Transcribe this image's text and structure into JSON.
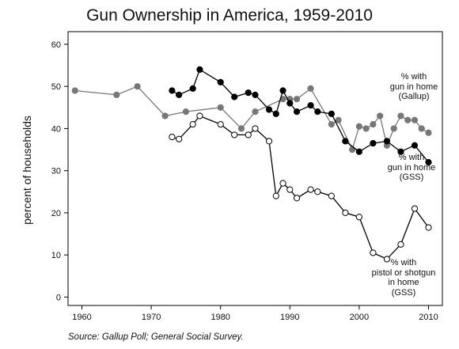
{
  "chart_data": {
    "type": "line",
    "title": "Gun Ownership in America, 1959-2010",
    "ylabel": "percent of households",
    "xlabel": "",
    "source": "Source: Gallup Poll; General Social Survey.",
    "xlim": [
      1958,
      2012
    ],
    "ylim": [
      -2,
      63
    ],
    "xticks": [
      1960,
      1970,
      1980,
      1990,
      2000,
      2010
    ],
    "yticks": [
      0,
      10,
      20,
      30,
      40,
      50,
      60
    ],
    "grid": false,
    "series": [
      {
        "name": "% with gun in home (Gallup)",
        "label_lines": [
          "% with",
          "gun in home",
          "(Gallup)"
        ],
        "color": "#777777",
        "marker_fill": "#777777",
        "x": [
          1959,
          1965,
          1968,
          1972,
          1975,
          1980,
          1983,
          1985,
          1989,
          1990,
          1991,
          1993,
          1996,
          1997,
          1999,
          2000,
          2001,
          2002,
          2003,
          2004,
          2005,
          2006,
          2007,
          2008,
          2009,
          2010
        ],
        "y": [
          49,
          48,
          50,
          43,
          44,
          45,
          40,
          44,
          47,
          47,
          47,
          49.5,
          41,
          42,
          35,
          40.5,
          40,
          41,
          43,
          36,
          40,
          43,
          42,
          42,
          40,
          39
        ]
      },
      {
        "name": "% with gun in home (GSS)",
        "label_lines": [
          "% with",
          "gun in home",
          "(GSS)"
        ],
        "color": "#000000",
        "marker_fill": "#000000",
        "x": [
          1973,
          1974,
          1976,
          1977,
          1980,
          1982,
          1984,
          1985,
          1987,
          1988,
          1989,
          1990,
          1991,
          1993,
          1994,
          1996,
          1998,
          2000,
          2002,
          2004,
          2006,
          2008,
          2010
        ],
        "y": [
          49,
          48,
          49.5,
          54,
          51,
          47.5,
          48.5,
          48,
          44.5,
          43.5,
          49,
          46,
          44,
          45.5,
          44,
          43.5,
          37,
          34.5,
          36.5,
          37,
          34.5,
          36,
          32
        ]
      },
      {
        "name": "% with pistol or shotgun in home (GSS)",
        "label_lines": [
          "% with",
          "pistol or shotgun",
          "in home",
          "(GSS)"
        ],
        "color": "#000000",
        "marker_fill": "#ffffff",
        "x": [
          1973,
          1974,
          1976,
          1977,
          1980,
          1982,
          1984,
          1985,
          1987,
          1988,
          1989,
          1990,
          1991,
          1993,
          1994,
          1996,
          1998,
          2000,
          2002,
          2004,
          2006,
          2008,
          2010
        ],
        "y": [
          38,
          37.5,
          41,
          43,
          41,
          38.5,
          38.5,
          40,
          37,
          24,
          27,
          25.5,
          23.5,
          25.5,
          25,
          24,
          20,
          19,
          10.5,
          9,
          12.5,
          21,
          16.5
        ]
      }
    ]
  }
}
